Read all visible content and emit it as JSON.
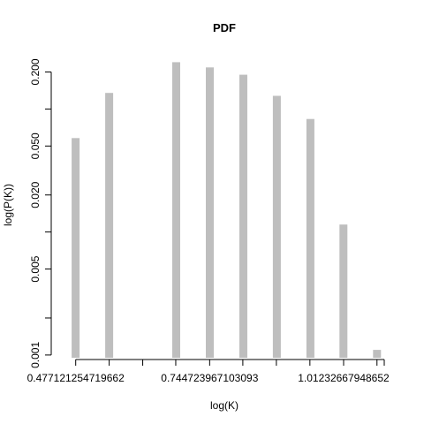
{
  "chart_data": {
    "type": "bar",
    "title": "PDF",
    "xlabel": "log(K)",
    "ylabel": "log(P(K))",
    "y_scale": "log",
    "ylim": [
      0.00095,
      0.29
    ],
    "xlim": [
      0.43,
      1.12
    ],
    "bar_color": "#bebebe",
    "x_tick_values": [
      0.477121254719662,
      0.544,
      0.611,
      0.677,
      0.744723967103093,
      0.811,
      0.878,
      0.945,
      1.01232667948652,
      1.079
    ],
    "x_tick_labels": [
      {
        "value": 0.477121254719662,
        "label": "0.477121254719662"
      },
      {
        "value": 0.744723967103093,
        "label": "0.744723967103093"
      },
      {
        "value": 1.01232667948652,
        "label": "1.01232667948652"
      }
    ],
    "y_ticks": [
      {
        "value": 0.001,
        "label": "0.001"
      },
      {
        "value": 0.002,
        "label": ""
      },
      {
        "value": 0.005,
        "label": "0.005"
      },
      {
        "value": 0.01,
        "label": ""
      },
      {
        "value": 0.02,
        "label": "0.020"
      },
      {
        "value": 0.05,
        "label": "0.050"
      },
      {
        "value": 0.1,
        "label": ""
      },
      {
        "value": 0.2,
        "label": "0.200"
      }
    ],
    "bars": [
      {
        "x": 0.477,
        "y": 0.058
      },
      {
        "x": 0.544,
        "y": 0.135
      },
      {
        "x": 0.678,
        "y": 0.24
      },
      {
        "x": 0.745,
        "y": 0.218
      },
      {
        "x": 0.812,
        "y": 0.19
      },
      {
        "x": 0.879,
        "y": 0.128
      },
      {
        "x": 0.946,
        "y": 0.083
      },
      {
        "x": 1.012,
        "y": 0.0115
      },
      {
        "x": 1.079,
        "y": 0.0011
      }
    ]
  }
}
